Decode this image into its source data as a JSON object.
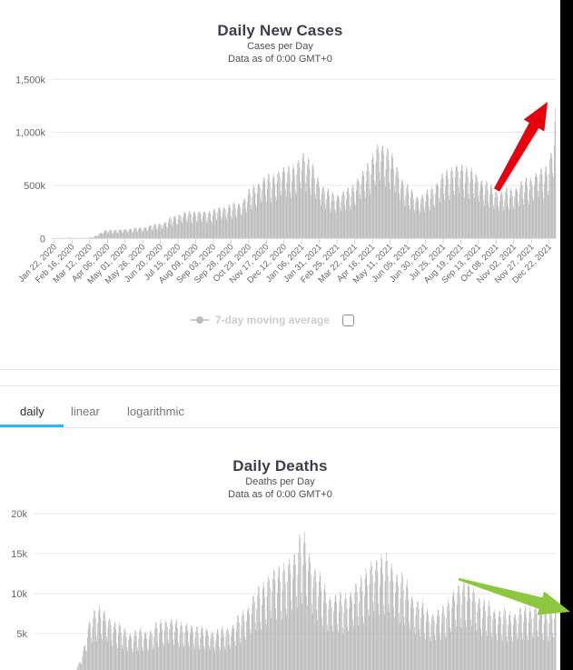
{
  "page": {
    "background": "#ffffff",
    "right_edge_strip_color": "#000000"
  },
  "tabs": {
    "accent_color": "#29b6f6",
    "items": [
      {
        "label": "daily",
        "active": true
      },
      {
        "label": "linear",
        "active": false
      },
      {
        "label": "logarithmic",
        "active": false
      }
    ]
  },
  "legend": {
    "label": "7-day moving average",
    "checked": false,
    "text_color": "#cccccc"
  },
  "chart_data": [
    {
      "id": "daily-new-cases",
      "type": "bar",
      "title": "Daily New Cases",
      "subtitle": [
        "Cases per Day",
        "Data as of 0:00 GMT+0"
      ],
      "unit": "cases per day (values in thousands)",
      "bar_color": "#ababab",
      "grid": true,
      "ylim": [
        0,
        1500
      ],
      "y_ticks": [
        {
          "v": 0,
          "label": "0"
        },
        {
          "v": 500,
          "label": "500k"
        },
        {
          "v": 1000,
          "label": "1,000k"
        },
        {
          "v": 1500,
          "label": "1,500k"
        }
      ],
      "x_range": [
        "Jan 22, 2020",
        "Dec 31, 2021"
      ],
      "x_tick_interval_days": 25,
      "x_tick_labels": [
        "Jan 22, 2020",
        "Feb 16, 2020",
        "Mar 12, 2020",
        "Apr 06, 2020",
        "May 01, 2020",
        "May 26, 2020",
        "Jun 20, 2020",
        "Jul 15, 2020",
        "Aug 09, 2020",
        "Sep 03, 2020",
        "Sep 28, 2020",
        "Oct 23, 2020",
        "Nov 17, 2020",
        "Dec 12, 2020",
        "Jan 06, 2021",
        "Jan 31, 2021",
        "Feb 25, 2021",
        "Mar 22, 2021",
        "Apr 16, 2021",
        "May 11, 2021",
        "Jun 05, 2021",
        "Jun 30, 2021",
        "Jul 25, 2021",
        "Aug 19, 2021",
        "Sep 13, 2021",
        "Oct 08, 2021",
        "Nov 02, 2021",
        "Nov 27, 2021",
        "Dec 22, 2021"
      ],
      "envelope_day_valueK": [
        [
          0,
          1
        ],
        [
          8,
          2
        ],
        [
          18,
          3
        ],
        [
          21,
          13
        ],
        [
          24,
          4
        ],
        [
          30,
          2
        ],
        [
          38,
          2
        ],
        [
          45,
          4
        ],
        [
          52,
          10
        ],
        [
          57,
          20
        ],
        [
          60,
          35
        ],
        [
          64,
          50
        ],
        [
          67,
          63
        ],
        [
          71,
          75
        ],
        [
          74,
          82
        ],
        [
          81,
          85
        ],
        [
          88,
          82
        ],
        [
          95,
          85
        ],
        [
          102,
          93
        ],
        [
          109,
          95
        ],
        [
          116,
          100
        ],
        [
          123,
          105
        ],
        [
          130,
          115
        ],
        [
          137,
          127
        ],
        [
          144,
          135
        ],
        [
          151,
          150
        ],
        [
          158,
          160
        ],
        [
          165,
          200
        ],
        [
          172,
          220
        ],
        [
          179,
          240
        ],
        [
          186,
          250
        ],
        [
          193,
          260
        ],
        [
          200,
          260
        ],
        [
          207,
          255
        ],
        [
          214,
          260
        ],
        [
          221,
          265
        ],
        [
          228,
          280
        ],
        [
          235,
          300
        ],
        [
          242,
          310
        ],
        [
          249,
          320
        ],
        [
          256,
          330
        ],
        [
          263,
          350
        ],
        [
          270,
          400
        ],
        [
          277,
          465
        ],
        [
          284,
          510
        ],
        [
          291,
          560
        ],
        [
          298,
          580
        ],
        [
          305,
          600
        ],
        [
          312,
          620
        ],
        [
          319,
          650
        ],
        [
          326,
          680
        ],
        [
          333,
          700
        ],
        [
          340,
          680
        ],
        [
          347,
          750
        ],
        [
          352,
          845
        ],
        [
          361,
          740
        ],
        [
          368,
          650
        ],
        [
          375,
          560
        ],
        [
          382,
          500
        ],
        [
          389,
          440
        ],
        [
          396,
          420
        ],
        [
          403,
          440
        ],
        [
          410,
          450
        ],
        [
          417,
          470
        ],
        [
          424,
          530
        ],
        [
          431,
          600
        ],
        [
          438,
          640
        ],
        [
          445,
          740
        ],
        [
          452,
          820
        ],
        [
          459,
          900
        ],
        [
          464,
          905
        ],
        [
          473,
          850
        ],
        [
          480,
          750
        ],
        [
          487,
          650
        ],
        [
          494,
          560
        ],
        [
          501,
          480
        ],
        [
          508,
          430
        ],
        [
          515,
          410
        ],
        [
          522,
          420
        ],
        [
          529,
          450
        ],
        [
          536,
          500
        ],
        [
          543,
          560
        ],
        [
          550,
          610
        ],
        [
          557,
          650
        ],
        [
          564,
          690
        ],
        [
          571,
          700
        ],
        [
          578,
          700
        ],
        [
          585,
          680
        ],
        [
          592,
          640
        ],
        [
          599,
          600
        ],
        [
          606,
          560
        ],
        [
          613,
          520
        ],
        [
          620,
          480
        ],
        [
          627,
          460
        ],
        [
          634,
          450
        ],
        [
          641,
          460
        ],
        [
          648,
          480
        ],
        [
          655,
          510
        ],
        [
          662,
          540
        ],
        [
          669,
          570
        ],
        [
          676,
          590
        ],
        [
          683,
          640
        ],
        [
          690,
          660
        ],
        [
          697,
          700
        ],
        [
          702,
          800
        ],
        [
          706,
          950
        ],
        [
          709,
          1230
        ]
      ],
      "weekly_reporting_pattern": [
        0.8,
        0.94,
        1.0,
        0.97,
        0.88,
        0.66,
        0.58
      ],
      "annotation": {
        "shape": "arrow",
        "name": "red-arrow",
        "color": "#e8000d",
        "from": [
          547,
          209
        ],
        "to": [
          603,
          112
        ]
      }
    },
    {
      "id": "daily-deaths",
      "type": "bar",
      "title": "Daily Deaths",
      "subtitle": [
        "Deaths per Day",
        "Data as of 0:00 GMT+0"
      ],
      "unit": "deaths per day (values in thousands)",
      "bar_color": "#ababab",
      "grid": true,
      "ylim": [
        0,
        20
      ],
      "y_ticks": [
        {
          "v": 5,
          "label": "5k"
        },
        {
          "v": 10,
          "label": "10k"
        },
        {
          "v": 15,
          "label": "15k"
        },
        {
          "v": 20,
          "label": "20k"
        }
      ],
      "x_range": [
        "Jan 22, 2020",
        "Dec 31, 2021"
      ],
      "x_tick_interval_days": 25,
      "x_tick_labels": [],
      "envelope_day_valueK": [
        [
          0,
          0.02
        ],
        [
          30,
          0.06
        ],
        [
          40,
          0.1
        ],
        [
          48,
          0.2
        ],
        [
          53,
          0.5
        ],
        [
          57,
          1.0
        ],
        [
          60,
          1.8
        ],
        [
          64,
          3.0
        ],
        [
          67,
          4.2
        ],
        [
          71,
          6.0
        ],
        [
          74,
          7.0
        ],
        [
          78,
          7.8
        ],
        [
          81,
          8.3
        ],
        [
          88,
          8.5
        ],
        [
          95,
          7.5
        ],
        [
          102,
          7.0
        ],
        [
          109,
          6.5
        ],
        [
          116,
          6.0
        ],
        [
          123,
          5.5
        ],
        [
          130,
          5.2
        ],
        [
          137,
          5.4
        ],
        [
          144,
          5.6
        ],
        [
          151,
          5.4
        ],
        [
          158,
          5.6
        ],
        [
          165,
          6.4
        ],
        [
          172,
          6.8
        ],
        [
          179,
          7.0
        ],
        [
          186,
          6.8
        ],
        [
          193,
          6.7
        ],
        [
          200,
          6.4
        ],
        [
          207,
          6.2
        ],
        [
          214,
          6.1
        ],
        [
          221,
          6.0
        ],
        [
          228,
          5.8
        ],
        [
          235,
          5.6
        ],
        [
          242,
          5.5
        ],
        [
          249,
          5.6
        ],
        [
          256,
          5.7
        ],
        [
          263,
          6.0
        ],
        [
          270,
          6.5
        ],
        [
          277,
          7.2
        ],
        [
          284,
          8.0
        ],
        [
          291,
          9.0
        ],
        [
          298,
          10.0
        ],
        [
          305,
          11.0
        ],
        [
          312,
          11.8
        ],
        [
          319,
          12.5
        ],
        [
          326,
          13.2
        ],
        [
          333,
          13.8
        ],
        [
          340,
          13.5
        ],
        [
          347,
          14.5
        ],
        [
          354,
          16.0
        ],
        [
          359,
          17.4
        ],
        [
          365,
          17.0
        ],
        [
          372,
          15.5
        ],
        [
          379,
          14.0
        ],
        [
          386,
          12.5
        ],
        [
          393,
          11.0
        ],
        [
          400,
          10.2
        ],
        [
          407,
          10.0
        ],
        [
          414,
          9.8
        ],
        [
          421,
          10.0
        ],
        [
          428,
          10.5
        ],
        [
          435,
          11.0
        ],
        [
          442,
          12.0
        ],
        [
          449,
          13.0
        ],
        [
          456,
          13.8
        ],
        [
          463,
          14.5
        ],
        [
          470,
          15.0
        ],
        [
          477,
          14.6
        ],
        [
          484,
          14.0
        ],
        [
          491,
          13.2
        ],
        [
          498,
          12.4
        ],
        [
          505,
          11.4
        ],
        [
          512,
          10.4
        ],
        [
          519,
          9.4
        ],
        [
          526,
          8.8
        ],
        [
          533,
          8.2
        ],
        [
          540,
          7.8
        ],
        [
          547,
          7.8
        ],
        [
          554,
          8.3
        ],
        [
          561,
          9.2
        ],
        [
          568,
          10.2
        ],
        [
          575,
          11.0
        ],
        [
          582,
          11.8
        ],
        [
          589,
          11.5
        ],
        [
          596,
          10.8
        ],
        [
          603,
          10.0
        ],
        [
          610,
          9.3
        ],
        [
          617,
          8.8
        ],
        [
          624,
          8.4
        ],
        [
          631,
          8.1
        ],
        [
          638,
          7.9
        ],
        [
          645,
          7.7
        ],
        [
          652,
          7.9
        ],
        [
          659,
          8.1
        ],
        [
          666,
          8.3
        ],
        [
          673,
          8.4
        ],
        [
          680,
          8.6
        ],
        [
          687,
          8.4
        ],
        [
          694,
          8.3
        ],
        [
          701,
          8.1
        ],
        [
          709,
          8.4
        ]
      ],
      "weekly_reporting_pattern": [
        0.78,
        0.92,
        1.0,
        0.96,
        0.85,
        0.6,
        0.52
      ],
      "annotation": {
        "shape": "arrow",
        "name": "green-arrow",
        "color": "#8dc63f",
        "from": [
          505,
          637
        ],
        "to": [
          628,
          673
        ]
      }
    }
  ]
}
